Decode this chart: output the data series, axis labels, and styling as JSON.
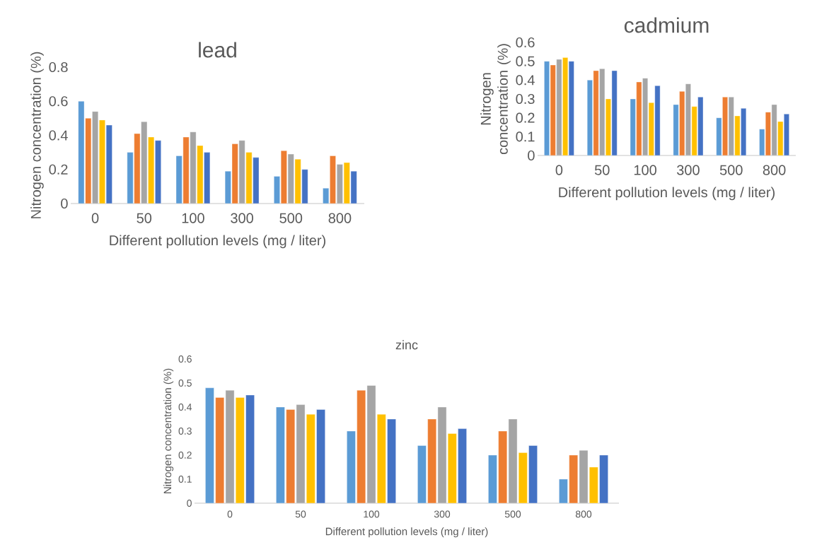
{
  "chart_data": [
    {
      "type": "bar",
      "title": "lead",
      "xlabel": "Different pollution levels (mg / liter)",
      "ylabel": "Nitrogen concentration (%)",
      "categories": [
        "0",
        "50",
        "100",
        "300",
        "500",
        "800"
      ],
      "ylim": [
        0,
        0.8
      ],
      "yticks": [
        {
          "value": 0,
          "label": "0"
        },
        {
          "value": 0.2,
          "label": "0.2"
        },
        {
          "value": 0.4,
          "label": "0.4"
        },
        {
          "value": 0.6,
          "label": "0.6"
        },
        {
          "value": 0.8,
          "label": "0.8"
        }
      ],
      "series": [
        {
          "color": "#5b9bd5",
          "values": [
            0.6,
            0.3,
            0.28,
            0.19,
            0.16,
            0.09
          ]
        },
        {
          "color": "#ed7d31",
          "values": [
            0.5,
            0.41,
            0.39,
            0.35,
            0.31,
            0.28
          ]
        },
        {
          "color": "#a5a5a5",
          "values": [
            0.54,
            0.48,
            0.42,
            0.37,
            0.29,
            0.23
          ]
        },
        {
          "color": "#ffc000",
          "values": [
            0.49,
            0.39,
            0.34,
            0.3,
            0.26,
            0.24
          ]
        },
        {
          "color": "#4472c4",
          "values": [
            0.46,
            0.37,
            0.3,
            0.27,
            0.2,
            0.19
          ]
        }
      ]
    },
    {
      "type": "bar",
      "title": "cadmium",
      "xlabel": "Different pollution levels (mg / liter)",
      "ylabel": "Nitrogen concentration (%)",
      "categories": [
        "0",
        "50",
        "100",
        "300",
        "500",
        "800"
      ],
      "ylim": [
        0,
        0.6
      ],
      "yticks": [
        {
          "value": 0,
          "label": "0"
        },
        {
          "value": 0.1,
          "label": "0.1"
        },
        {
          "value": 0.2,
          "label": "0.2"
        },
        {
          "value": 0.3,
          "label": "0.3"
        },
        {
          "value": 0.4,
          "label": "0.4"
        },
        {
          "value": 0.5,
          "label": "0.5"
        },
        {
          "value": 0.6,
          "label": "0.6"
        }
      ],
      "series": [
        {
          "color": "#5b9bd5",
          "values": [
            0.5,
            0.4,
            0.3,
            0.27,
            0.2,
            0.14
          ]
        },
        {
          "color": "#ed7d31",
          "values": [
            0.48,
            0.45,
            0.39,
            0.34,
            0.31,
            0.23
          ]
        },
        {
          "color": "#a5a5a5",
          "values": [
            0.51,
            0.46,
            0.41,
            0.38,
            0.31,
            0.27
          ]
        },
        {
          "color": "#ffc000",
          "values": [
            0.52,
            0.3,
            0.28,
            0.26,
            0.21,
            0.18
          ]
        },
        {
          "color": "#4472c4",
          "values": [
            0.5,
            0.45,
            0.37,
            0.31,
            0.25,
            0.22
          ]
        }
      ]
    },
    {
      "type": "bar",
      "title": "zinc",
      "xlabel": "Different pollution levels (mg / liter)",
      "ylabel": "Nitrogen concentration (%)",
      "categories": [
        "0",
        "50",
        "100",
        "300",
        "500",
        "800"
      ],
      "ylim": [
        0,
        0.6
      ],
      "yticks": [
        {
          "value": 0,
          "label": "0"
        },
        {
          "value": 0.1,
          "label": "0.1"
        },
        {
          "value": 0.2,
          "label": "0.2"
        },
        {
          "value": 0.3,
          "label": "0.3"
        },
        {
          "value": 0.4,
          "label": "0.4"
        },
        {
          "value": 0.5,
          "label": "0.5"
        },
        {
          "value": 0.6,
          "label": "0.6"
        }
      ],
      "series": [
        {
          "color": "#5b9bd5",
          "values": [
            0.48,
            0.4,
            0.3,
            0.24,
            0.2,
            0.1
          ]
        },
        {
          "color": "#ed7d31",
          "values": [
            0.44,
            0.39,
            0.47,
            0.35,
            0.3,
            0.2
          ]
        },
        {
          "color": "#a5a5a5",
          "values": [
            0.47,
            0.41,
            0.49,
            0.4,
            0.35,
            0.22
          ]
        },
        {
          "color": "#ffc000",
          "values": [
            0.44,
            0.37,
            0.37,
            0.29,
            0.21,
            0.15
          ]
        },
        {
          "color": "#4472c4",
          "values": [
            0.45,
            0.39,
            0.35,
            0.31,
            0.24,
            0.2
          ]
        }
      ]
    }
  ]
}
